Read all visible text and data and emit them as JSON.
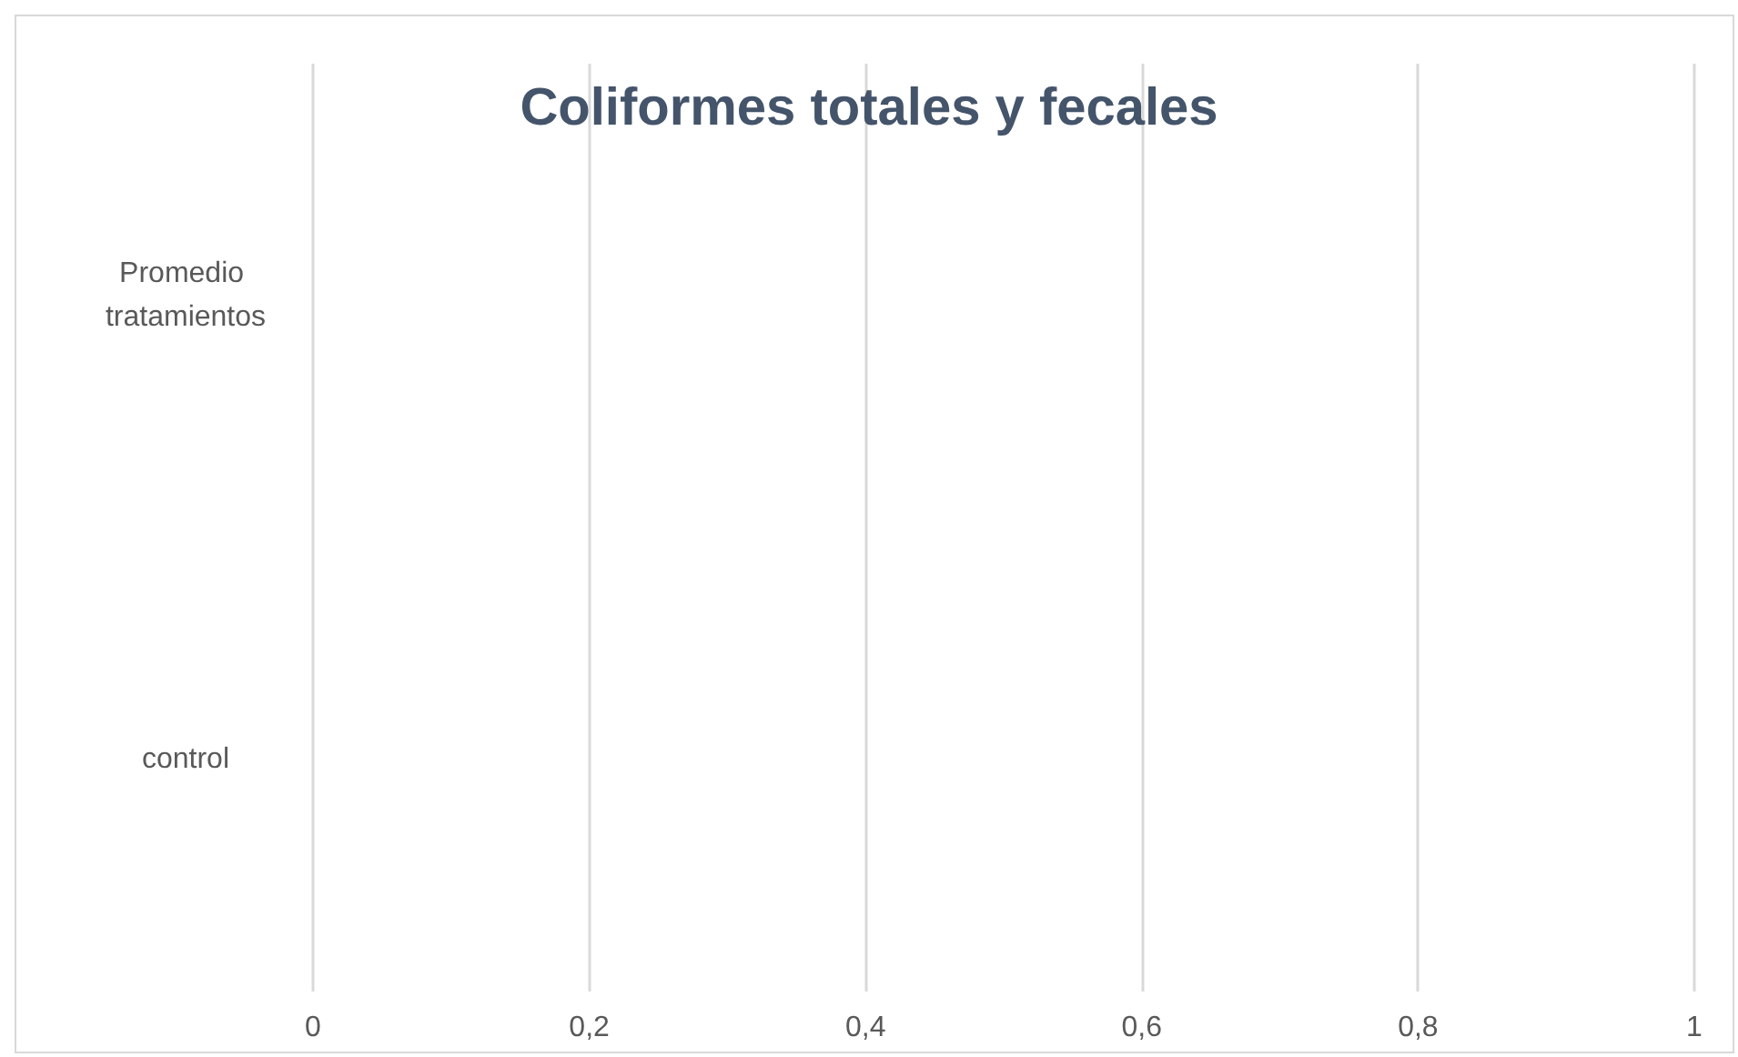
{
  "chart_data": {
    "type": "bar",
    "title": "Coliformes totales y fecales",
    "orientation": "horizontal",
    "categories": [
      "Promedio tratamientos",
      "control"
    ],
    "values": [
      null,
      null
    ],
    "xlim": [
      0,
      1
    ],
    "xticks": [
      {
        "value": 0,
        "label": "0"
      },
      {
        "value": 0.2,
        "label": "0,2"
      },
      {
        "value": 0.4,
        "label": "0,4"
      },
      {
        "value": 0.6,
        "label": "0,6"
      },
      {
        "value": 0.8,
        "label": "0,8"
      },
      {
        "value": 1,
        "label": "1"
      }
    ],
    "grid": "x"
  }
}
